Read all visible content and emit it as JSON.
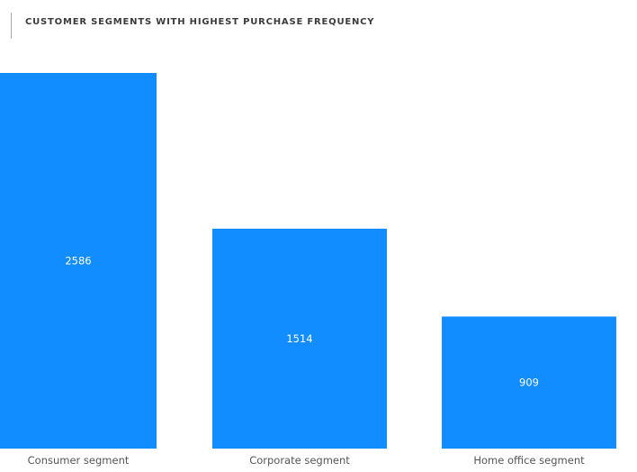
{
  "chart_data": {
    "type": "bar",
    "title": "CUSTOMER SEGMENTS WITH HIGHEST PURCHASE FREQUENCY",
    "categories": [
      "Consumer segment",
      "Corporate segment",
      "Home office segment"
    ],
    "values": [
      2586,
      1514,
      909
    ],
    "data_labels": [
      "2586",
      "1514",
      "909"
    ],
    "bar_color": "#118dff",
    "ylim": [
      0,
      2586
    ],
    "grid": false,
    "legend": "none"
  }
}
